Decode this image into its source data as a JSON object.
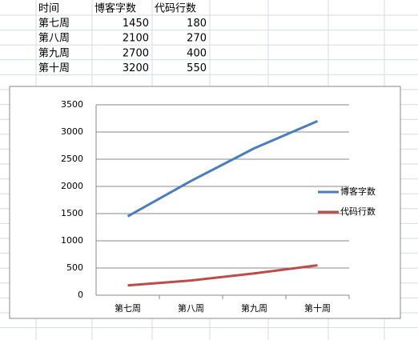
{
  "table": {
    "header": [
      "时间",
      "博客字数",
      "代码行数"
    ],
    "rows": [
      [
        "第七周",
        1450,
        180
      ],
      [
        "第八周",
        2100,
        270
      ],
      [
        "第九周",
        2700,
        400
      ],
      [
        "第十周",
        3200,
        550
      ]
    ]
  },
  "chart_data": {
    "type": "line",
    "categories": [
      "第七周",
      "第八周",
      "第九周",
      "第十周"
    ],
    "series": [
      {
        "name": "博客字数",
        "color": "#4a7ebb",
        "values": [
          1450,
          2100,
          2700,
          3200
        ]
      },
      {
        "name": "代码行数",
        "color": "#be4b48",
        "values": [
          180,
          270,
          400,
          550
        ]
      }
    ],
    "ylim": [
      0,
      3500
    ],
    "yticks": [
      0,
      500,
      1000,
      1500,
      2000,
      2500,
      3000,
      3500
    ],
    "grid": true,
    "legend": "right"
  }
}
